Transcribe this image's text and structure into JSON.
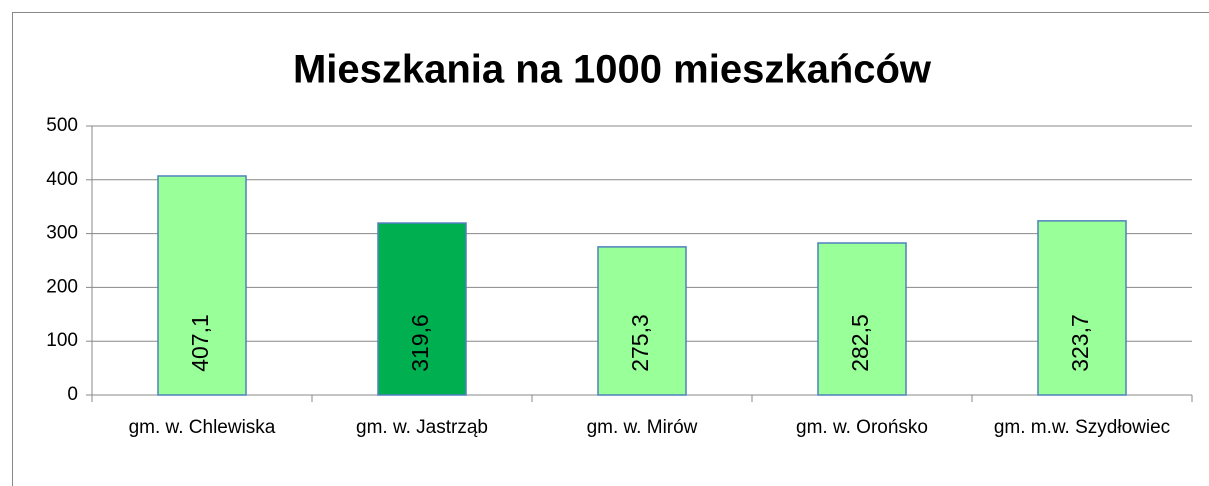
{
  "chart_data": {
    "type": "bar",
    "title": "Mieszkania na 1000 mieszkańców",
    "categories": [
      "gm. w. Chlewiska",
      "gm. w. Jastrząb",
      "gm. w. Mirów",
      "gm. w. Orońsko",
      "gm. m.w. Szydłowiec"
    ],
    "values": [
      407.1,
      319.6,
      275.3,
      282.5,
      323.7
    ],
    "value_labels": [
      "407,1",
      "319,6",
      "275,3",
      "282,5",
      "323,7"
    ],
    "colors": [
      "#99ff99",
      "#00b050",
      "#99ff99",
      "#99ff99",
      "#99ff99"
    ],
    "ylim": [
      0,
      500
    ],
    "yticks": [
      0,
      100,
      200,
      300,
      400,
      500
    ],
    "grid": true
  }
}
